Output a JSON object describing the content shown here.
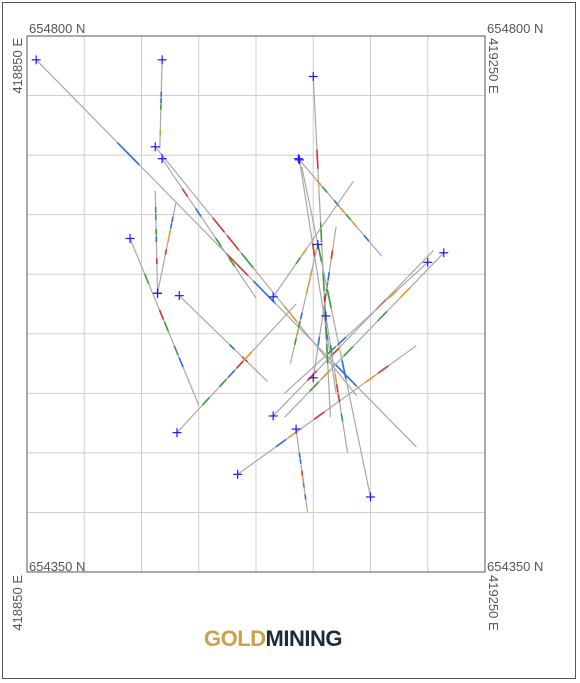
{
  "labels": {
    "top_left_north": "654800 N",
    "top_right_north": "654800 N",
    "top_left_east": "418850 E",
    "top_right_east": "419250 E",
    "bottom_left_north": "654350 N",
    "bottom_right_north": "654350 N",
    "bottom_left_east": "418850 E",
    "bottom_right_east": "419250 E"
  },
  "logo": {
    "gold": "GOLD",
    "mining": "MINING"
  },
  "colors": {
    "grid": "#cfcfcf",
    "trace": "#a8a8a8",
    "collar": "#1a1aff",
    "assay_red": "#d9342b",
    "assay_green": "#3a9b3a",
    "assay_blue": "#2b6fd9",
    "assay_orange": "#e8962b",
    "logo_gold": "#c9a24a",
    "logo_dark": "#1d2b3a"
  },
  "extent": {
    "east_min": 418850,
    "east_max": 419250,
    "north_min": 654350,
    "north_max": 654800
  },
  "drillholes": [
    {
      "collar": [
        418858,
        654780
      ],
      "toe": [
        419190,
        654455
      ]
    },
    {
      "collar": [
        418962,
        654707
      ],
      "toe": [
        419138,
        654498
      ]
    },
    {
      "collar": [
        418968,
        654697
      ],
      "toe": [
        419050,
        654580
      ]
    },
    {
      "collar": [
        418940,
        654630
      ],
      "toe": [
        419000,
        654490
      ]
    },
    {
      "collar": [
        418964,
        654584
      ],
      "toe": [
        418962,
        654670
      ]
    },
    {
      "collar": [
        418964,
        654584
      ],
      "toe": [
        418980,
        654660
      ]
    },
    {
      "collar": [
        418983,
        654582
      ],
      "toe": [
        419060,
        654510
      ]
    },
    {
      "collar": [
        418981,
        654467
      ],
      "toe": [
        419085,
        654575
      ]
    },
    {
      "collar": [
        419034,
        654432
      ],
      "toe": [
        419190,
        654540
      ]
    },
    {
      "collar": [
        419065,
        654481
      ],
      "toe": [
        419205,
        654620
      ]
    },
    {
      "collar": [
        419100,
        654766
      ],
      "toe": [
        419115,
        654480
      ]
    },
    {
      "collar": [
        419088,
        654696
      ],
      "toe": [
        419120,
        654500
      ]
    },
    {
      "collar": [
        419087,
        654697
      ],
      "toe": [
        419160,
        654615
      ]
    },
    {
      "collar": [
        419104,
        654625
      ],
      "toe": [
        419080,
        654525
      ]
    },
    {
      "collar": [
        419111,
        654565
      ],
      "toe": [
        419130,
        654450
      ]
    },
    {
      "collar": [
        419100,
        654513
      ],
      "toe": [
        419120,
        654640
      ]
    },
    {
      "collar": [
        419150,
        654413
      ],
      "toe": [
        419090,
        654690
      ]
    },
    {
      "collar": [
        419065,
        654581
      ],
      "toe": [
        419135,
        654678
      ]
    },
    {
      "collar": [
        419214,
        654618
      ],
      "toe": [
        419075,
        654480
      ]
    },
    {
      "collar": [
        419200,
        654610
      ],
      "toe": [
        419075,
        654500
      ]
    },
    {
      "collar": [
        419085,
        654470
      ],
      "toe": [
        419095,
        654400
      ]
    },
    {
      "collar": [
        418968,
        654780
      ],
      "toe": [
        418966,
        654705
      ]
    }
  ]
}
